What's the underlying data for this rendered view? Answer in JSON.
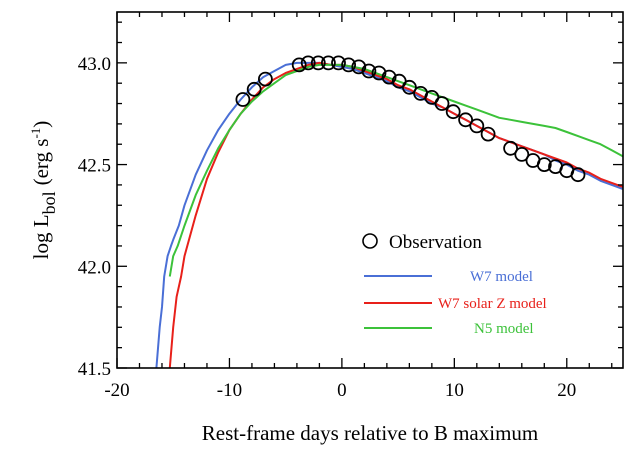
{
  "chart_data": {
    "type": "line",
    "title": "",
    "xlabel": "Rest-frame days relative to B maximum",
    "ylabel_main": "log L",
    "ylabel_sub": "bol",
    "ylabel_units": "(erg s",
    "ylabel_units_sup": "-1",
    "ylabel_units_close": ")",
    "xlim": [
      -20,
      25
    ],
    "ylim": [
      41.5,
      43.25
    ],
    "xticks": [
      -20,
      -10,
      0,
      10,
      20
    ],
    "xtick_labels": [
      "-20",
      "-10",
      "0",
      "10",
      "20"
    ],
    "yticks": [
      41.5,
      42.0,
      42.5,
      43.0
    ],
    "ytick_labels": [
      "41.5",
      "42.0",
      "42.5",
      "43.0"
    ],
    "grid": false,
    "legend_placement": "lower-right",
    "observation": {
      "name": "Observation",
      "marker": "open-circle",
      "color": "#000000",
      "x": [
        -8.8,
        -7.8,
        -6.8,
        -3.8,
        -3.0,
        -2.1,
        -1.2,
        -0.3,
        0.6,
        1.5,
        2.4,
        3.3,
        4.2,
        5.1,
        6.0,
        7.0,
        8.0,
        8.9,
        9.9,
        11.0,
        12.0,
        13.0,
        15.0,
        16.0,
        17.0,
        18.0,
        19.0,
        20.0,
        21.0
      ],
      "y": [
        42.82,
        42.87,
        42.92,
        42.99,
        43.0,
        43.0,
        43.0,
        43.0,
        42.99,
        42.98,
        42.96,
        42.95,
        42.93,
        42.91,
        42.88,
        42.85,
        42.83,
        42.8,
        42.76,
        42.72,
        42.69,
        42.65,
        42.58,
        42.55,
        42.52,
        42.5,
        42.49,
        42.47,
        42.45
      ]
    },
    "series": [
      {
        "name": "W7 model",
        "color": "#4a6fd6",
        "x": [
          -16.5,
          -16.2,
          -16.0,
          -15.8,
          -15.5,
          -15.2,
          -15.0,
          -14.5,
          -14,
          -13,
          -12,
          -11,
          -10,
          -9,
          -8,
          -7,
          -6,
          -5,
          -4,
          -3,
          -2,
          -1,
          0,
          1,
          2,
          3,
          4,
          5,
          6,
          7,
          8,
          9,
          10,
          11,
          12,
          13,
          14,
          15,
          16,
          17,
          18,
          19,
          20,
          21,
          22,
          23,
          24,
          25
        ],
        "y": [
          41.5,
          41.7,
          41.8,
          41.95,
          42.05,
          42.1,
          42.13,
          42.2,
          42.3,
          42.45,
          42.57,
          42.67,
          42.75,
          42.82,
          42.88,
          42.93,
          42.96,
          42.99,
          43.0,
          43.0,
          43.0,
          42.99,
          42.98,
          42.97,
          42.95,
          42.93,
          42.91,
          42.88,
          42.86,
          42.83,
          42.8,
          42.78,
          42.75,
          42.72,
          42.69,
          42.66,
          42.63,
          42.61,
          42.59,
          42.57,
          42.55,
          42.52,
          42.5,
          42.47,
          42.45,
          42.42,
          42.4,
          42.38
        ]
      },
      {
        "name": "W7 solar Z model",
        "color": "#e8201a",
        "x": [
          -15.3,
          -15.0,
          -14.7,
          -14.3,
          -14,
          -13,
          -12,
          -11,
          -10,
          -9,
          -8,
          -7,
          -6,
          -5,
          -4,
          -3,
          -2,
          -1,
          0,
          1,
          2,
          3,
          4,
          5,
          6,
          7,
          8,
          9,
          10,
          11,
          12,
          13,
          14,
          15,
          16,
          17,
          18,
          19,
          20,
          21,
          22,
          23,
          24,
          25
        ],
        "y": [
          41.5,
          41.7,
          41.85,
          41.95,
          42.05,
          42.25,
          42.43,
          42.56,
          42.67,
          42.75,
          42.82,
          42.88,
          42.92,
          42.95,
          42.97,
          42.99,
          43.0,
          42.99,
          42.99,
          42.98,
          42.96,
          42.94,
          42.92,
          42.89,
          42.87,
          42.84,
          42.81,
          42.78,
          42.75,
          42.72,
          42.69,
          42.66,
          42.63,
          42.61,
          42.59,
          42.57,
          42.55,
          42.53,
          42.51,
          42.48,
          42.46,
          42.43,
          42.41,
          42.39
        ]
      },
      {
        "name": "N5 model",
        "color": "#3cc23a",
        "x": [
          -15.3,
          -15.0,
          -14.6,
          -14,
          -13,
          -12,
          -11,
          -10,
          -9,
          -8,
          -7,
          -6,
          -5,
          -4,
          -3,
          -2,
          -1,
          0,
          1,
          2,
          3,
          4,
          5,
          6,
          7,
          8,
          9,
          10,
          11,
          12,
          13,
          14,
          15,
          16,
          17,
          18,
          19,
          20,
          21,
          22,
          23,
          24,
          25
        ],
        "y": [
          41.95,
          42.05,
          42.1,
          42.2,
          42.35,
          42.47,
          42.58,
          42.67,
          42.75,
          42.81,
          42.86,
          42.9,
          42.94,
          42.96,
          42.98,
          42.99,
          42.99,
          42.99,
          42.98,
          42.97,
          42.95,
          42.93,
          42.91,
          42.89,
          42.87,
          42.85,
          42.83,
          42.81,
          42.79,
          42.77,
          42.75,
          42.73,
          42.72,
          42.71,
          42.7,
          42.69,
          42.68,
          42.66,
          42.64,
          42.62,
          42.6,
          42.57,
          42.54
        ]
      }
    ]
  }
}
